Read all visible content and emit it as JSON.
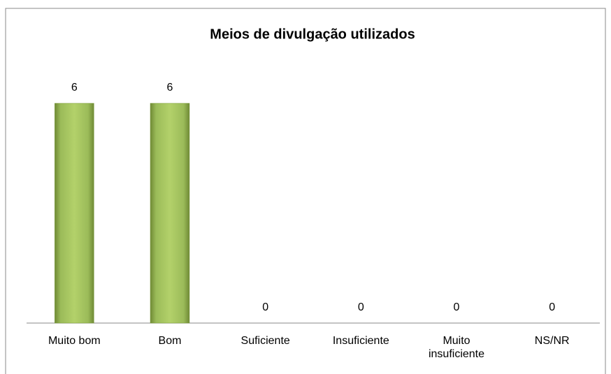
{
  "chart_data": {
    "type": "bar",
    "title": "Meios de divulgação utilizados",
    "categories": [
      "Muito bom",
      "Bom",
      "Suficiente",
      "Insuficiente",
      "Muito insuficiente",
      "NS/NR"
    ],
    "values": [
      6,
      6,
      0,
      0,
      0,
      0
    ],
    "color": "#9bbb59",
    "ylim": [
      0,
      6
    ]
  }
}
